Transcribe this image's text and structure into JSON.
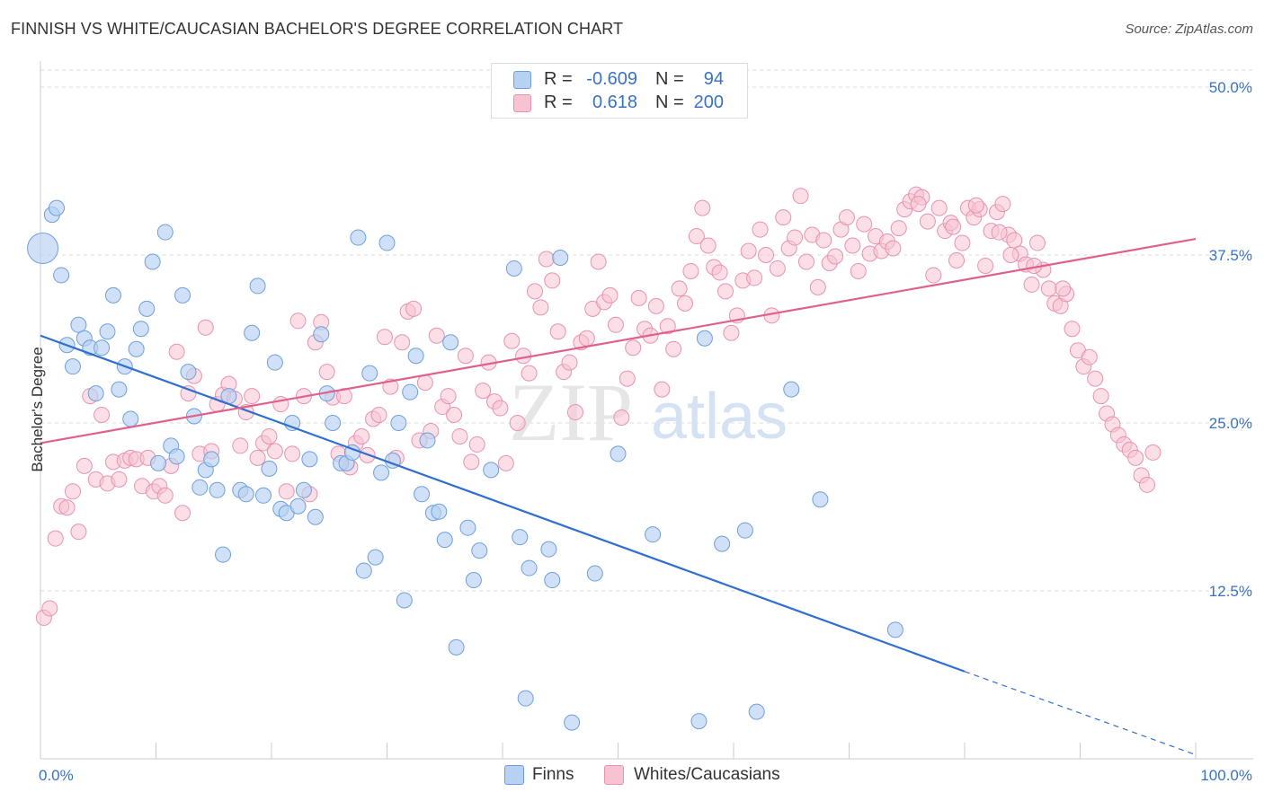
{
  "title": "FINNISH VS WHITE/CAUCASIAN BACHELOR'S DEGREE CORRELATION CHART",
  "source": "Source: ZipAtlas.com",
  "watermark": {
    "zip": "ZIP",
    "atlas": "atlas"
  },
  "legend": {
    "rows": [
      {
        "r_label": "R =",
        "r_value": "-0.609",
        "n_label": "N =",
        "n_value": "94"
      },
      {
        "r_label": "R =",
        "r_value": "0.618",
        "n_label": "N =",
        "n_value": "200"
      }
    ],
    "bottom": [
      "Finns",
      "Whites/Caucasians"
    ]
  },
  "colors": {
    "finns_fill": "#b7d1f2",
    "finns_stroke": "#6f9fdc",
    "finns_line": "#2f6fce",
    "whites_fill": "#f7c3d2",
    "whites_stroke": "#e793af",
    "whites_line": "#e0608d",
    "axis_label": "#3a72c4",
    "grid": "#dddddd"
  },
  "chart_data": {
    "type": "scatter",
    "title": "FINNISH VS WHITE/CAUCASIAN BACHELOR'S DEGREE CORRELATION CHART",
    "xlabel": "",
    "ylabel": "Bachelor's Degree",
    "xlim": [
      0,
      100
    ],
    "ylim": [
      0,
      50
    ],
    "x_tick_labels": [
      "0.0%",
      "100.0%"
    ],
    "y_ticks": [
      12.5,
      25.0,
      37.5,
      50.0
    ],
    "y_tick_labels": [
      "12.5%",
      "25.0%",
      "37.5%",
      "50.0%"
    ],
    "grid": "horizontal dashed",
    "legend_placement": "top-center and bottom",
    "series": [
      {
        "name": "Finns",
        "R": -0.609,
        "N": 94,
        "trend": {
          "x": [
            0,
            80
          ],
          "y": [
            31.5,
            6.5
          ],
          "dashed_to": [
            100,
            0.3
          ]
        },
        "points": [
          [
            0.2,
            38.0
          ],
          [
            1.0,
            40.5
          ],
          [
            1.4,
            41.0
          ],
          [
            1.8,
            36.0
          ],
          [
            2.3,
            30.8
          ],
          [
            2.8,
            29.2
          ],
          [
            3.3,
            32.3
          ],
          [
            3.8,
            31.3
          ],
          [
            4.3,
            30.6
          ],
          [
            4.8,
            27.2
          ],
          [
            5.3,
            30.6
          ],
          [
            5.8,
            31.8
          ],
          [
            6.3,
            34.5
          ],
          [
            6.8,
            27.5
          ],
          [
            7.3,
            29.2
          ],
          [
            7.8,
            25.3
          ],
          [
            8.3,
            30.5
          ],
          [
            8.7,
            32.0
          ],
          [
            9.2,
            33.5
          ],
          [
            9.7,
            37.0
          ],
          [
            10.2,
            22.0
          ],
          [
            10.8,
            39.2
          ],
          [
            11.3,
            23.3
          ],
          [
            11.8,
            22.5
          ],
          [
            12.3,
            34.5
          ],
          [
            12.8,
            28.8
          ],
          [
            13.3,
            25.5
          ],
          [
            13.8,
            20.2
          ],
          [
            14.3,
            21.5
          ],
          [
            14.8,
            22.3
          ],
          [
            15.3,
            20.0
          ],
          [
            15.8,
            15.2
          ],
          [
            16.3,
            27.0
          ],
          [
            17.3,
            20.0
          ],
          [
            17.8,
            19.7
          ],
          [
            18.3,
            31.7
          ],
          [
            18.8,
            35.2
          ],
          [
            19.3,
            19.6
          ],
          [
            19.8,
            21.6
          ],
          [
            20.3,
            29.5
          ],
          [
            20.8,
            18.6
          ],
          [
            21.3,
            18.3
          ],
          [
            21.8,
            25.0
          ],
          [
            22.3,
            18.8
          ],
          [
            22.8,
            20.0
          ],
          [
            23.3,
            22.3
          ],
          [
            23.8,
            18.0
          ],
          [
            24.3,
            31.6
          ],
          [
            24.8,
            27.2
          ],
          [
            25.3,
            25.0
          ],
          [
            26.0,
            22.0
          ],
          [
            26.5,
            22.0
          ],
          [
            27.0,
            22.8
          ],
          [
            27.5,
            38.8
          ],
          [
            28.0,
            14.0
          ],
          [
            28.5,
            28.7
          ],
          [
            29.0,
            15.0
          ],
          [
            29.5,
            21.3
          ],
          [
            30.0,
            38.4
          ],
          [
            30.5,
            22.2
          ],
          [
            31.0,
            25.0
          ],
          [
            31.5,
            11.8
          ],
          [
            32.0,
            27.3
          ],
          [
            32.5,
            30.0
          ],
          [
            33.0,
            19.7
          ],
          [
            33.5,
            23.7
          ],
          [
            34.0,
            18.3
          ],
          [
            34.5,
            18.4
          ],
          [
            35.0,
            16.3
          ],
          [
            35.5,
            31.0
          ],
          [
            36.0,
            8.3
          ],
          [
            37.0,
            17.2
          ],
          [
            37.5,
            13.3
          ],
          [
            38.0,
            15.5
          ],
          [
            39.0,
            21.5
          ],
          [
            41.0,
            36.5
          ],
          [
            41.5,
            16.5
          ],
          [
            42.0,
            4.5
          ],
          [
            42.3,
            14.2
          ],
          [
            44.0,
            15.6
          ],
          [
            44.3,
            13.3
          ],
          [
            45.0,
            37.3
          ],
          [
            46.0,
            2.7
          ],
          [
            48.0,
            13.8
          ],
          [
            50.0,
            22.7
          ],
          [
            53.0,
            16.7
          ],
          [
            57.0,
            2.8
          ],
          [
            57.5,
            31.3
          ],
          [
            59.0,
            16.0
          ],
          [
            61.0,
            17.0
          ],
          [
            62.0,
            3.5
          ],
          [
            65.0,
            27.5
          ],
          [
            67.5,
            19.3
          ],
          [
            74.0,
            9.6
          ]
        ]
      },
      {
        "name": "Whites/Caucasians",
        "R": 0.618,
        "N": 200,
        "trend": {
          "x": [
            0,
            100
          ],
          "y": [
            23.5,
            38.7
          ]
        },
        "points": [
          [
            0.3,
            10.5
          ],
          [
            0.8,
            11.2
          ],
          [
            1.3,
            16.4
          ],
          [
            1.8,
            18.8
          ],
          [
            2.3,
            18.7
          ],
          [
            2.8,
            19.9
          ],
          [
            3.3,
            16.9
          ],
          [
            3.8,
            21.8
          ],
          [
            4.3,
            27.0
          ],
          [
            4.8,
            20.8
          ],
          [
            5.3,
            25.6
          ],
          [
            5.8,
            20.5
          ],
          [
            6.3,
            22.1
          ],
          [
            6.8,
            20.8
          ],
          [
            7.3,
            22.2
          ],
          [
            7.8,
            22.4
          ],
          [
            8.3,
            22.3
          ],
          [
            8.8,
            20.3
          ],
          [
            9.3,
            22.4
          ],
          [
            9.8,
            19.9
          ],
          [
            10.3,
            20.3
          ],
          [
            10.8,
            19.6
          ],
          [
            11.3,
            21.8
          ],
          [
            11.8,
            30.3
          ],
          [
            12.3,
            18.3
          ],
          [
            12.8,
            27.2
          ],
          [
            13.3,
            28.5
          ],
          [
            13.8,
            22.7
          ],
          [
            14.3,
            32.1
          ],
          [
            14.8,
            22.9
          ],
          [
            15.3,
            26.4
          ],
          [
            15.8,
            27.1
          ],
          [
            16.3,
            27.9
          ],
          [
            16.8,
            26.8
          ],
          [
            17.3,
            23.3
          ],
          [
            17.8,
            25.8
          ],
          [
            18.3,
            27.0
          ],
          [
            18.8,
            22.4
          ],
          [
            19.3,
            23.5
          ],
          [
            19.8,
            24.0
          ],
          [
            20.3,
            22.9
          ],
          [
            20.8,
            26.4
          ],
          [
            21.3,
            19.9
          ],
          [
            21.8,
            22.7
          ],
          [
            22.3,
            32.6
          ],
          [
            22.8,
            27.0
          ],
          [
            23.3,
            19.7
          ],
          [
            23.8,
            31.0
          ],
          [
            24.3,
            32.5
          ],
          [
            24.8,
            28.8
          ],
          [
            25.3,
            26.9
          ],
          [
            25.8,
            22.7
          ],
          [
            26.3,
            27.0
          ],
          [
            26.8,
            21.7
          ],
          [
            27.3,
            23.5
          ],
          [
            27.8,
            24.0
          ],
          [
            28.3,
            22.6
          ],
          [
            28.8,
            25.3
          ],
          [
            29.3,
            25.6
          ],
          [
            29.8,
            31.4
          ],
          [
            30.3,
            27.7
          ],
          [
            30.8,
            22.4
          ],
          [
            31.3,
            31.0
          ],
          [
            31.8,
            33.3
          ],
          [
            32.3,
            33.5
          ],
          [
            32.8,
            23.7
          ],
          [
            33.3,
            28.0
          ],
          [
            33.8,
            24.4
          ],
          [
            34.3,
            31.5
          ],
          [
            34.8,
            26.2
          ],
          [
            35.3,
            27.0
          ],
          [
            35.8,
            25.6
          ],
          [
            36.3,
            24.0
          ],
          [
            36.8,
            30.0
          ],
          [
            37.3,
            22.1
          ],
          [
            37.8,
            23.4
          ],
          [
            38.3,
            27.4
          ],
          [
            38.8,
            29.5
          ],
          [
            39.3,
            26.6
          ],
          [
            39.8,
            26.1
          ],
          [
            40.3,
            22.0
          ],
          [
            40.8,
            31.1
          ],
          [
            41.3,
            25.0
          ],
          [
            41.8,
            30.0
          ],
          [
            42.3,
            28.7
          ],
          [
            42.8,
            34.8
          ],
          [
            43.3,
            33.6
          ],
          [
            43.8,
            37.2
          ],
          [
            44.3,
            35.6
          ],
          [
            44.8,
            31.8
          ],
          [
            45.3,
            28.8
          ],
          [
            45.8,
            29.5
          ],
          [
            46.3,
            25.8
          ],
          [
            46.8,
            31.0
          ],
          [
            47.3,
            31.3
          ],
          [
            47.8,
            33.5
          ],
          [
            48.3,
            37.0
          ],
          [
            48.8,
            34.0
          ],
          [
            49.3,
            34.5
          ],
          [
            49.8,
            32.3
          ],
          [
            50.3,
            25.4
          ],
          [
            50.8,
            28.3
          ],
          [
            51.3,
            30.6
          ],
          [
            51.8,
            34.3
          ],
          [
            52.3,
            32.0
          ],
          [
            52.8,
            31.5
          ],
          [
            53.3,
            33.7
          ],
          [
            53.8,
            27.5
          ],
          [
            54.3,
            32.2
          ],
          [
            54.8,
            30.5
          ],
          [
            55.3,
            35.0
          ],
          [
            55.8,
            33.9
          ],
          [
            56.3,
            36.3
          ],
          [
            56.8,
            38.9
          ],
          [
            57.3,
            41.0
          ],
          [
            57.8,
            38.2
          ],
          [
            58.3,
            36.6
          ],
          [
            58.8,
            36.2
          ],
          [
            59.3,
            34.8
          ],
          [
            59.8,
            31.7
          ],
          [
            60.3,
            33.0
          ],
          [
            60.8,
            35.6
          ],
          [
            61.3,
            37.8
          ],
          [
            61.8,
            35.8
          ],
          [
            62.3,
            39.4
          ],
          [
            62.8,
            37.5
          ],
          [
            63.3,
            33.0
          ],
          [
            63.8,
            36.5
          ],
          [
            64.3,
            40.3
          ],
          [
            64.8,
            38.0
          ],
          [
            65.3,
            38.8
          ],
          [
            65.8,
            41.9
          ],
          [
            66.3,
            37.0
          ],
          [
            66.8,
            39.0
          ],
          [
            67.3,
            35.1
          ],
          [
            67.8,
            38.6
          ],
          [
            68.3,
            36.9
          ],
          [
            68.8,
            37.4
          ],
          [
            69.3,
            39.4
          ],
          [
            69.8,
            40.3
          ],
          [
            70.3,
            38.2
          ],
          [
            70.8,
            36.3
          ],
          [
            71.3,
            39.8
          ],
          [
            71.8,
            37.6
          ],
          [
            72.3,
            38.9
          ],
          [
            72.8,
            37.8
          ],
          [
            73.3,
            38.5
          ],
          [
            73.8,
            38.0
          ],
          [
            74.3,
            39.5
          ],
          [
            74.8,
            40.9
          ],
          [
            75.3,
            41.5
          ],
          [
            75.8,
            42.0
          ],
          [
            76.3,
            41.8
          ],
          [
            76.8,
            40.0
          ],
          [
            77.3,
            36.0
          ],
          [
            77.8,
            41.0
          ],
          [
            78.3,
            39.3
          ],
          [
            78.8,
            39.9
          ],
          [
            79.3,
            37.1
          ],
          [
            79.8,
            38.4
          ],
          [
            80.3,
            41.0
          ],
          [
            80.8,
            40.3
          ],
          [
            81.3,
            40.9
          ],
          [
            81.8,
            36.7
          ],
          [
            82.3,
            39.3
          ],
          [
            82.8,
            40.7
          ],
          [
            83.3,
            41.3
          ],
          [
            83.8,
            39.0
          ],
          [
            84.3,
            38.6
          ],
          [
            84.8,
            37.6
          ],
          [
            85.3,
            36.8
          ],
          [
            85.8,
            35.3
          ],
          [
            86.3,
            38.4
          ],
          [
            86.8,
            36.4
          ],
          [
            87.3,
            35.0
          ],
          [
            87.8,
            33.9
          ],
          [
            88.3,
            33.7
          ],
          [
            88.8,
            34.6
          ],
          [
            89.3,
            32.0
          ],
          [
            89.8,
            30.4
          ],
          [
            90.3,
            29.2
          ],
          [
            90.8,
            29.9
          ],
          [
            91.3,
            28.3
          ],
          [
            91.8,
            27.0
          ],
          [
            92.3,
            25.7
          ],
          [
            92.8,
            24.9
          ],
          [
            93.3,
            24.1
          ],
          [
            93.8,
            23.4
          ],
          [
            94.3,
            23.0
          ],
          [
            94.8,
            22.4
          ],
          [
            95.3,
            21.1
          ],
          [
            95.8,
            20.4
          ],
          [
            96.3,
            22.8
          ],
          [
            88.5,
            35.0
          ],
          [
            86.0,
            36.7
          ],
          [
            84.0,
            37.5
          ],
          [
            83.0,
            39.2
          ],
          [
            81.0,
            41.2
          ],
          [
            79.0,
            39.6
          ],
          [
            76.0,
            41.3
          ]
        ]
      }
    ]
  }
}
